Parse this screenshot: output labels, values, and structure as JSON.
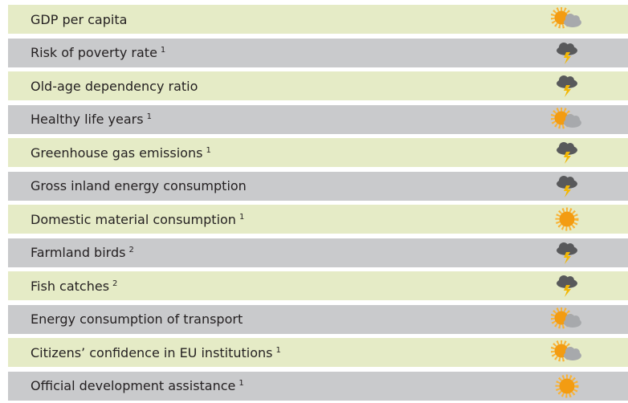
{
  "table": {
    "rows": [
      {
        "label": "GDP per capita"
      },
      {
        "label": "Risk of poverty rate",
        "note": "1"
      },
      {
        "label": "Old-age dependency ratio"
      },
      {
        "label": "Healthy life years",
        "note": "1"
      },
      {
        "label": "Greenhouse gas emissions",
        "note": "1"
      },
      {
        "label": "Gross inland energy consumption"
      },
      {
        "label": "Domestic material consumption",
        "note": "1"
      },
      {
        "label": "Farmland birds",
        "note": "2"
      },
      {
        "label": "Fish catches",
        "note": "2"
      },
      {
        "label": "Energy consumption of transport"
      },
      {
        "label": "Citizens’ confidence in EU institutions",
        "note": "1"
      },
      {
        "label": "Official development assistance",
        "note": "1"
      }
    ]
  }
}
